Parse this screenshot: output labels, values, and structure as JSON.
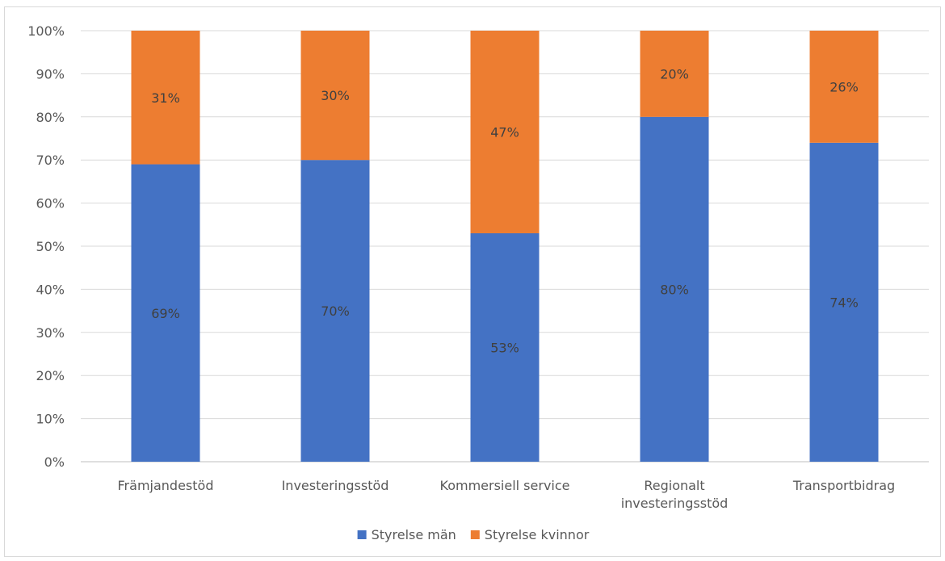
{
  "chart_data": {
    "type": "bar",
    "stacked": true,
    "percent_stacked": true,
    "categories": [
      [
        "Främjandestöd"
      ],
      [
        "Investeringsstöd"
      ],
      [
        "Kommersiell service"
      ],
      [
        "Regionalt",
        "investeringsstöd"
      ],
      [
        "Transportbidrag"
      ]
    ],
    "series": [
      {
        "name": "Styrelse män",
        "color": "#4472C4",
        "values": [
          69,
          70,
          53,
          80,
          74
        ]
      },
      {
        "name": "Styrelse kvinnor",
        "color": "#ED7D31",
        "values": [
          31,
          30,
          47,
          20,
          26
        ]
      }
    ],
    "data_labels": [
      [
        "69%",
        "70%",
        "53%",
        "80%",
        "74%"
      ],
      [
        "31%",
        "30%",
        "47%",
        "20%",
        "26%"
      ]
    ],
    "y_ticks": [
      "0%",
      "10%",
      "20%",
      "30%",
      "40%",
      "50%",
      "60%",
      "70%",
      "80%",
      "90%",
      "100%"
    ],
    "ylim": [
      0,
      100
    ],
    "grid": true,
    "legend_position": "bottom",
    "title": "",
    "xlabel": "",
    "ylabel": ""
  }
}
